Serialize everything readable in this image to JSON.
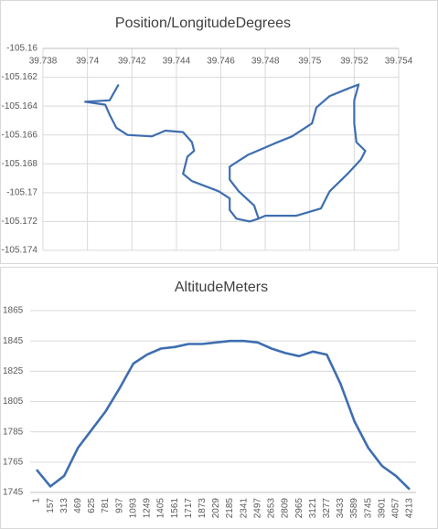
{
  "chart_data": [
    {
      "type": "scatter",
      "title": "Position/LongitudeDegrees",
      "color": "#3e6eb0",
      "grid": true,
      "x": [
        39.7414,
        39.741,
        39.7399,
        39.7408,
        39.741,
        39.7413,
        39.7418,
        39.7429,
        39.7435,
        39.7443,
        39.7447,
        39.7448,
        39.7445,
        39.7443,
        39.7447,
        39.7459,
        39.7464,
        39.7464,
        39.7467,
        39.7473,
        39.7477,
        39.7475,
        39.7468,
        39.7464,
        39.7464,
        39.7472,
        39.7484,
        39.7492,
        39.7501,
        39.7503,
        39.7509,
        39.7517,
        39.7522,
        39.752,
        39.752,
        39.7521,
        39.7525,
        39.7523,
        39.7517,
        39.7509,
        39.7505,
        39.7494,
        39.748,
        39.7477
      ],
      "y": [
        -105.1625,
        -105.1636,
        -105.1637,
        -105.1639,
        -105.1646,
        -105.1655,
        -105.166,
        -105.1661,
        -105.1657,
        -105.1658,
        -105.1665,
        -105.1671,
        -105.1675,
        -105.1687,
        -105.1692,
        -105.1699,
        -105.1704,
        -105.1712,
        -105.1718,
        -105.172,
        -105.1718,
        -105.1709,
        -105.1699,
        -105.1691,
        -105.1682,
        -105.1674,
        -105.1666,
        -105.1661,
        -105.1652,
        -105.1641,
        -105.1633,
        -105.1628,
        -105.1625,
        -105.1636,
        -105.1652,
        -105.1665,
        -105.1671,
        -105.1677,
        -105.1687,
        -105.1699,
        -105.1711,
        -105.1716,
        -105.1716,
        -105.1718
      ],
      "xlim": [
        39.738,
        39.754
      ],
      "xticks": [
        39.738,
        39.74,
        39.742,
        39.744,
        39.746,
        39.748,
        39.75,
        39.752,
        39.754
      ],
      "ylim": [
        -105.174,
        -105.16
      ],
      "yticks": [
        -105.16,
        -105.162,
        -105.164,
        -105.166,
        -105.168,
        -105.17,
        -105.172,
        -105.174
      ]
    },
    {
      "type": "line",
      "title": "AltitudeMeters",
      "color": "#3e6eb0",
      "grid": true,
      "categories": [
        1,
        157,
        313,
        469,
        625,
        781,
        937,
        1093,
        1249,
        1405,
        1561,
        1717,
        1873,
        2029,
        2185,
        2341,
        2497,
        2653,
        2809,
        2965,
        3121,
        3277,
        3433,
        3589,
        3745,
        3901,
        4057,
        4213
      ],
      "values": [
        1760,
        1749,
        1756,
        1774.5,
        1786.5,
        1798.6,
        1813.7,
        1830,
        1836,
        1840,
        1841,
        1843,
        1843,
        1844,
        1845,
        1845,
        1844,
        1840,
        1837,
        1835,
        1838,
        1836,
        1816.7,
        1792,
        1774.5,
        1762.5,
        1756,
        1747
      ],
      "ylim": [
        1745,
        1865
      ],
      "yticks": [
        1745,
        1765,
        1785,
        1805,
        1825,
        1845,
        1865
      ]
    }
  ]
}
